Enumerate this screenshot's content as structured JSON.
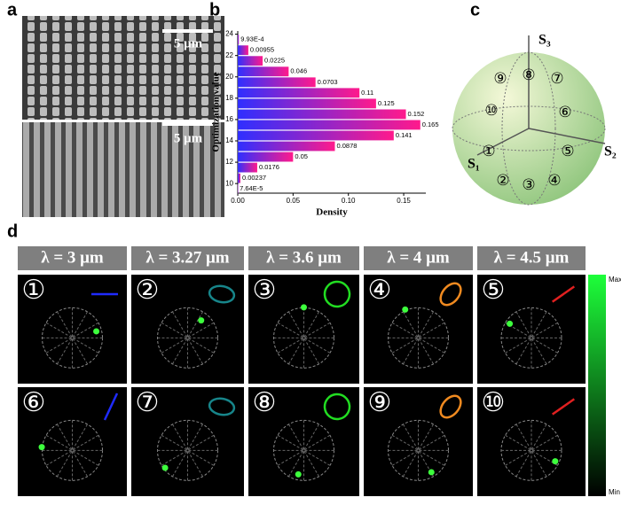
{
  "panel_labels": [
    "a",
    "b",
    "c",
    "d"
  ],
  "sem": {
    "scale_bars": [
      "5 μm",
      "5 μm"
    ]
  },
  "chart_data": {
    "type": "barh",
    "xlabel": "Density",
    "ylabel": "Optimization value",
    "y": [
      23.5,
      22.5,
      21.5,
      20.5,
      19.5,
      18.5,
      17.5,
      16.5,
      15.5,
      14.5,
      13.5,
      12.5,
      11.5,
      10.5,
      9.5
    ],
    "values": [
      0.000993,
      0.00955,
      0.0225,
      0.046,
      0.0703,
      0.11,
      0.125,
      0.152,
      0.165,
      0.141,
      0.0878,
      0.05,
      0.0176,
      0.00237,
      7.64e-05
    ],
    "value_labels": [
      "9.93E-4",
      "0.00955",
      "0.0225",
      "0.046",
      "0.0703",
      "0.11",
      "0.125",
      "0.152",
      "0.165",
      "0.141",
      "0.0878",
      "0.05",
      "0.0176",
      "0.00237",
      "7.64E-5"
    ],
    "colors": [
      "#2f2fff",
      "#ff1a8c"
    ],
    "xlim": [
      0,
      0.17
    ],
    "xticks": [
      {
        "value": 0,
        "label": "0.00"
      },
      0.05,
      {
        "value": 0.1,
        "label": "0.10"
      },
      0.15
    ],
    "ylim": [
      9.1,
      24.3
    ],
    "yticks": [
      10,
      12,
      14,
      16,
      18,
      20,
      22,
      24
    ]
  },
  "sphere": {
    "axes": [
      "S₃",
      "S₂",
      "S₁"
    ],
    "points": [
      "①",
      "②",
      "③",
      "④",
      "⑤",
      "⑥",
      "⑦",
      "⑧",
      "⑨",
      "⑩"
    ]
  },
  "spots": {
    "headers": [
      "λ = 3 μm",
      "λ = 3.27 μm",
      "λ = 3.6 μm",
      "λ = 4 μm",
      "λ = 4.5 μm"
    ],
    "labels": [
      "①",
      "②",
      "③",
      "④",
      "⑤",
      "⑥",
      "⑦",
      "⑧",
      "⑨",
      "⑩"
    ]
  },
  "colorbar": {
    "max": "Max",
    "min": "Min"
  }
}
